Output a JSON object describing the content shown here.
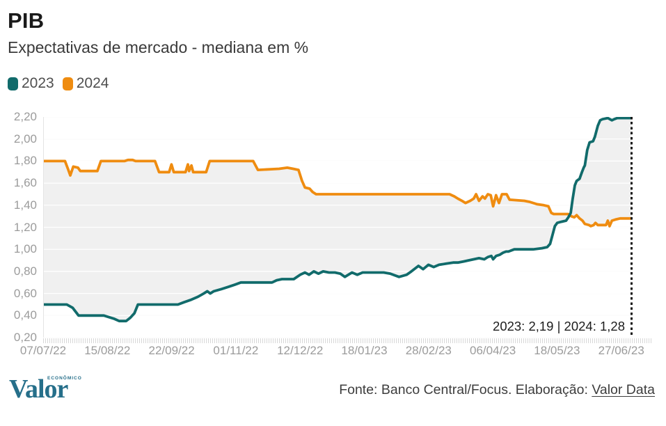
{
  "header": {
    "title": "PIB",
    "subtitle": "Expectativas de mercado - mediana em %"
  },
  "legend": [
    {
      "label": "2023",
      "color": "#116b6b"
    },
    {
      "label": "2024",
      "color": "#ef8c10"
    }
  ],
  "annotation": "2023: 2,19  |  2024: 1,28",
  "footer": {
    "logo_main": "Valor",
    "logo_small": "ECONÔMICO",
    "source_prefix": "Fonte: Banco Central/Focus. Elaboração: ",
    "source_link": "Valor Data"
  },
  "chart_data": {
    "type": "line",
    "title": "PIB",
    "subtitle": "Expectativas de mercado - mediana em %",
    "xlabel": "",
    "ylabel": "",
    "ylim": [
      0.2,
      2.2
    ],
    "grid": "horizontal",
    "legend_position": "top-left",
    "band_fill_between_series": true,
    "band_color": "#f0f0f0",
    "cutoff_line": "dotted vertical at right edge",
    "end_values": {
      "2023": 2.19,
      "2024": 1.28
    },
    "y_ticks": {
      "values": [
        2.2,
        2.0,
        1.8,
        1.6,
        1.4,
        1.2,
        1.0,
        0.8,
        0.6,
        0.4,
        0.2
      ],
      "labels": [
        "2,20",
        "2,00",
        "1,80",
        "1,60",
        "1,40",
        "1,20",
        "1,00",
        "0,80",
        "0,60",
        "0,40",
        "0,20"
      ]
    },
    "x_ticks": [
      "07/07/22",
      "15/08/22",
      "22/09/22",
      "01/11/22",
      "12/12/22",
      "18/01/23",
      "28/02/23",
      "06/04/23",
      "18/05/23",
      "27/06/23"
    ],
    "series": [
      {
        "name": "2023",
        "color": "#116b6b",
        "points": [
          [
            0.0,
            0.5
          ],
          [
            0.039,
            0.5
          ],
          [
            0.049,
            0.47
          ],
          [
            0.059,
            0.4
          ],
          [
            0.102,
            0.4
          ],
          [
            0.108,
            0.39
          ],
          [
            0.12,
            0.37
          ],
          [
            0.128,
            0.35
          ],
          [
            0.14,
            0.35
          ],
          [
            0.147,
            0.38
          ],
          [
            0.154,
            0.42
          ],
          [
            0.16,
            0.5
          ],
          [
            0.228,
            0.5
          ],
          [
            0.238,
            0.52
          ],
          [
            0.249,
            0.54
          ],
          [
            0.262,
            0.57
          ],
          [
            0.272,
            0.6
          ],
          [
            0.278,
            0.62
          ],
          [
            0.283,
            0.6
          ],
          [
            0.289,
            0.62
          ],
          [
            0.302,
            0.64
          ],
          [
            0.314,
            0.66
          ],
          [
            0.325,
            0.68
          ],
          [
            0.335,
            0.7
          ],
          [
            0.388,
            0.7
          ],
          [
            0.396,
            0.72
          ],
          [
            0.405,
            0.73
          ],
          [
            0.425,
            0.73
          ],
          [
            0.436,
            0.77
          ],
          [
            0.444,
            0.79
          ],
          [
            0.451,
            0.77
          ],
          [
            0.459,
            0.8
          ],
          [
            0.467,
            0.78
          ],
          [
            0.475,
            0.8
          ],
          [
            0.485,
            0.79
          ],
          [
            0.495,
            0.79
          ],
          [
            0.504,
            0.78
          ],
          [
            0.512,
            0.75
          ],
          [
            0.524,
            0.79
          ],
          [
            0.533,
            0.77
          ],
          [
            0.542,
            0.79
          ],
          [
            0.56,
            0.79
          ],
          [
            0.578,
            0.79
          ],
          [
            0.589,
            0.78
          ],
          [
            0.604,
            0.75
          ],
          [
            0.617,
            0.77
          ],
          [
            0.625,
            0.8
          ],
          [
            0.637,
            0.85
          ],
          [
            0.645,
            0.82
          ],
          [
            0.654,
            0.86
          ],
          [
            0.663,
            0.84
          ],
          [
            0.672,
            0.86
          ],
          [
            0.684,
            0.87
          ],
          [
            0.696,
            0.88
          ],
          [
            0.704,
            0.88
          ],
          [
            0.714,
            0.89
          ],
          [
            0.722,
            0.9
          ],
          [
            0.731,
            0.91
          ],
          [
            0.74,
            0.92
          ],
          [
            0.749,
            0.91
          ],
          [
            0.755,
            0.93
          ],
          [
            0.761,
            0.94
          ],
          [
            0.764,
            0.91
          ],
          [
            0.769,
            0.94
          ],
          [
            0.775,
            0.95
          ],
          [
            0.781,
            0.97
          ],
          [
            0.786,
            0.98
          ],
          [
            0.79,
            0.98
          ],
          [
            0.8,
            1.0
          ],
          [
            0.814,
            1.0
          ],
          [
            0.832,
            1.0
          ],
          [
            0.847,
            1.01
          ],
          [
            0.856,
            1.02
          ],
          [
            0.861,
            1.05
          ],
          [
            0.865,
            1.13
          ],
          [
            0.869,
            1.21
          ],
          [
            0.873,
            1.24
          ],
          [
            0.88,
            1.25
          ],
          [
            0.888,
            1.26
          ],
          [
            0.892,
            1.29
          ],
          [
            0.896,
            1.33
          ],
          [
            0.899,
            1.45
          ],
          [
            0.903,
            1.58
          ],
          [
            0.906,
            1.62
          ],
          [
            0.911,
            1.64
          ],
          [
            0.915,
            1.7
          ],
          [
            0.918,
            1.74
          ],
          [
            0.92,
            1.76
          ],
          [
            0.924,
            1.9
          ],
          [
            0.928,
            1.97
          ],
          [
            0.934,
            1.98
          ],
          [
            0.937,
            2.02
          ],
          [
            0.942,
            2.12
          ],
          [
            0.946,
            2.17
          ],
          [
            0.95,
            2.18
          ],
          [
            0.959,
            2.19
          ],
          [
            0.966,
            2.17
          ],
          [
            0.97,
            2.18
          ],
          [
            0.975,
            2.19
          ],
          [
            0.986,
            2.19
          ],
          [
            1.0,
            2.19
          ]
        ]
      },
      {
        "name": "2024",
        "color": "#ef8c10",
        "points": [
          [
            0.0,
            1.8
          ],
          [
            0.036,
            1.8
          ],
          [
            0.041,
            1.73
          ],
          [
            0.045,
            1.67
          ],
          [
            0.05,
            1.75
          ],
          [
            0.058,
            1.74
          ],
          [
            0.062,
            1.71
          ],
          [
            0.091,
            1.71
          ],
          [
            0.097,
            1.8
          ],
          [
            0.137,
            1.8
          ],
          [
            0.143,
            1.81
          ],
          [
            0.151,
            1.81
          ],
          [
            0.156,
            1.8
          ],
          [
            0.189,
            1.8
          ],
          [
            0.196,
            1.7
          ],
          [
            0.213,
            1.7
          ],
          [
            0.217,
            1.77
          ],
          [
            0.221,
            1.7
          ],
          [
            0.241,
            1.7
          ],
          [
            0.245,
            1.77
          ],
          [
            0.247,
            1.71
          ],
          [
            0.251,
            1.76
          ],
          [
            0.254,
            1.7
          ],
          [
            0.276,
            1.7
          ],
          [
            0.282,
            1.8
          ],
          [
            0.356,
            1.8
          ],
          [
            0.364,
            1.72
          ],
          [
            0.4,
            1.73
          ],
          [
            0.414,
            1.74
          ],
          [
            0.424,
            1.73
          ],
          [
            0.433,
            1.72
          ],
          [
            0.439,
            1.62
          ],
          [
            0.444,
            1.56
          ],
          [
            0.452,
            1.55
          ],
          [
            0.457,
            1.52
          ],
          [
            0.463,
            1.5
          ],
          [
            0.69,
            1.5
          ],
          [
            0.698,
            1.48
          ],
          [
            0.704,
            1.46
          ],
          [
            0.711,
            1.44
          ],
          [
            0.717,
            1.42
          ],
          [
            0.725,
            1.44
          ],
          [
            0.731,
            1.46
          ],
          [
            0.735,
            1.5
          ],
          [
            0.74,
            1.44
          ],
          [
            0.746,
            1.48
          ],
          [
            0.75,
            1.46
          ],
          [
            0.755,
            1.5
          ],
          [
            0.76,
            1.49
          ],
          [
            0.764,
            1.39
          ],
          [
            0.769,
            1.49
          ],
          [
            0.774,
            1.42
          ],
          [
            0.779,
            1.5
          ],
          [
            0.787,
            1.5
          ],
          [
            0.792,
            1.45
          ],
          [
            0.817,
            1.44
          ],
          [
            0.826,
            1.43
          ],
          [
            0.838,
            1.41
          ],
          [
            0.85,
            1.4
          ],
          [
            0.858,
            1.39
          ],
          [
            0.863,
            1.33
          ],
          [
            0.867,
            1.32
          ],
          [
            0.892,
            1.32
          ],
          [
            0.897,
            1.3
          ],
          [
            0.902,
            1.29
          ],
          [
            0.906,
            1.31
          ],
          [
            0.911,
            1.28
          ],
          [
            0.916,
            1.26
          ],
          [
            0.92,
            1.23
          ],
          [
            0.927,
            1.22
          ],
          [
            0.93,
            1.21
          ],
          [
            0.935,
            1.22
          ],
          [
            0.938,
            1.24
          ],
          [
            0.942,
            1.22
          ],
          [
            0.95,
            1.22
          ],
          [
            0.956,
            1.22
          ],
          [
            0.959,
            1.26
          ],
          [
            0.962,
            1.21
          ],
          [
            0.966,
            1.26
          ],
          [
            0.972,
            1.27
          ],
          [
            0.98,
            1.28
          ],
          [
            1.0,
            1.28
          ]
        ]
      }
    ],
    "annotation": "2023: 2,19 | 2024: 1,28"
  }
}
